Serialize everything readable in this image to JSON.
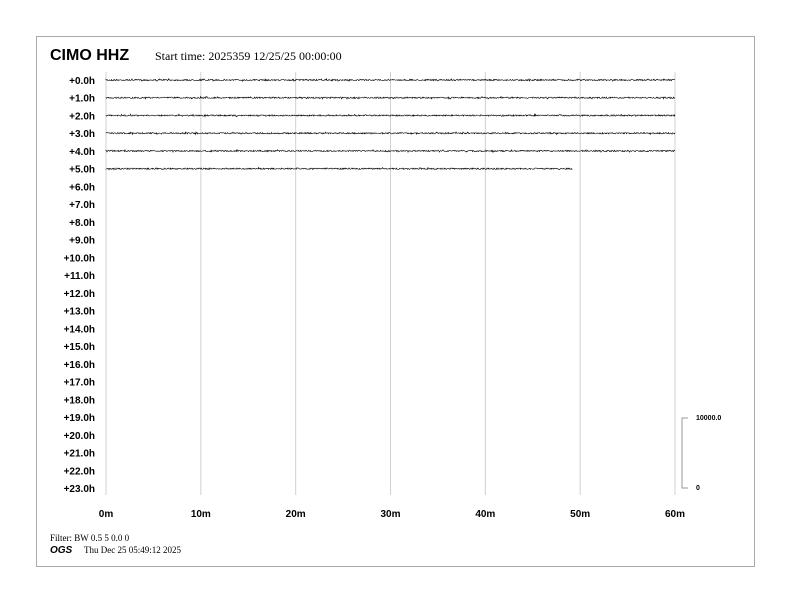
{
  "header": {
    "station": "CIMO HHZ",
    "start_time": "Start time: 2025359 12/25/25 00:00:00"
  },
  "footer": {
    "filter": "Filter: BW 0.5 5 0.0 0",
    "org": "OGS",
    "generated": "Thu Dec 25 05:49:12 2025"
  },
  "chart_data": {
    "type": "line",
    "subtype": "helicorder",
    "row_labels": [
      "+0.0h",
      "+1.0h",
      "+2.0h",
      "+3.0h",
      "+4.0h",
      "+5.0h",
      "+6.0h",
      "+7.0h",
      "+8.0h",
      "+9.0h",
      "+10.0h",
      "+11.0h",
      "+12.0h",
      "+13.0h",
      "+14.0h",
      "+15.0h",
      "+16.0h",
      "+17.0h",
      "+18.0h",
      "+19.0h",
      "+20.0h",
      "+21.0h",
      "+22.0h",
      "+23.0h"
    ],
    "x_ticks": [
      "0m",
      "10m",
      "20m",
      "30m",
      "40m",
      "50m",
      "60m"
    ],
    "xlim": [
      0,
      60
    ],
    "grid": true,
    "trace_end_minutes": [
      60,
      60,
      60,
      60,
      60,
      49.2
    ],
    "scale_bar": {
      "top_label": "10000.0",
      "bottom_label": "0",
      "top": 10000,
      "bottom": 0
    },
    "trace_color": "#000000",
    "grid_color": "#d0d0d0"
  }
}
